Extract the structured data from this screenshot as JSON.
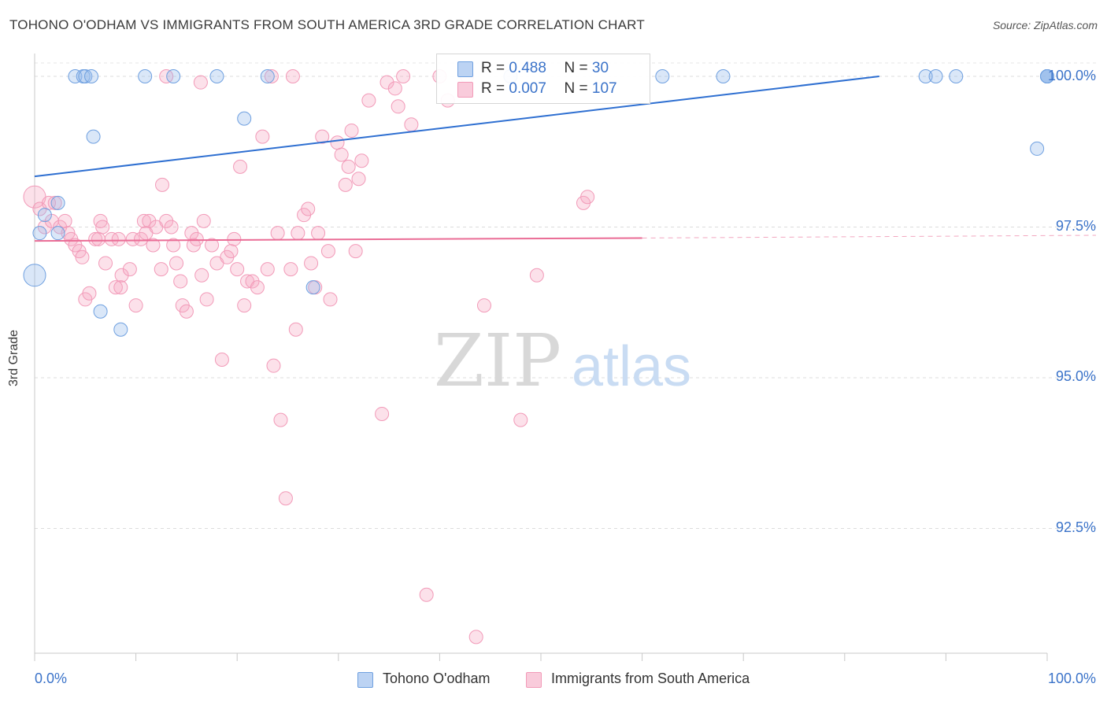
{
  "title": "TOHONO O'ODHAM VS IMMIGRANTS FROM SOUTH AMERICA 3RD GRADE CORRELATION CHART",
  "source": "Source: ZipAtlas.com",
  "watermark": {
    "zip": "ZIP",
    "atlas": "atlas"
  },
  "legend": {
    "r_label": "R =",
    "n_label": "N =",
    "series": [
      {
        "r": "0.488",
        "n": "30"
      },
      {
        "r": "0.007",
        "n": "107"
      }
    ]
  },
  "chart_data": {
    "type": "scatter",
    "title": "TOHONO O'ODHAM VS IMMIGRANTS FROM SOUTH AMERICA 3RD GRADE CORRELATION CHART",
    "xlabel": "",
    "ylabel": "3rd Grade",
    "xlim": [
      0,
      100
    ],
    "ylim": [
      90.0,
      100.4
    ],
    "x_ticks": [
      "0.0%",
      "100.0%"
    ],
    "y_ticks": [
      "100.0%",
      "97.5%",
      "95.0%",
      "92.5%"
    ],
    "y_tick_values": [
      100.0,
      97.5,
      95.0,
      92.5
    ],
    "grid": true,
    "legend_position": "bottom",
    "series": [
      {
        "name": "Tohono O'odham",
        "color": "#6fa0e0",
        "trend": {
          "x": [
            0,
            100
          ],
          "y": [
            98.34,
            100.33
          ],
          "solid_until": 100
        },
        "points": [
          [
            0,
            96.7
          ],
          [
            0.5,
            97.4
          ],
          [
            1,
            97.7
          ],
          [
            2.3,
            97.9
          ],
          [
            2.3,
            97.4
          ],
          [
            4,
            100
          ],
          [
            4.8,
            100
          ],
          [
            5,
            100
          ],
          [
            5.6,
            100
          ],
          [
            5.8,
            99.0
          ],
          [
            6.5,
            96.1
          ],
          [
            8.5,
            95.8
          ],
          [
            10.9,
            100
          ],
          [
            13.7,
            100
          ],
          [
            18,
            100
          ],
          [
            20.7,
            99.3
          ],
          [
            23,
            100
          ],
          [
            27.5,
            96.5
          ],
          [
            47,
            100
          ],
          [
            62,
            100
          ],
          [
            68,
            100
          ],
          [
            88,
            100
          ],
          [
            89,
            100
          ],
          [
            91,
            100
          ],
          [
            99,
            98.8
          ],
          [
            100,
            100
          ],
          [
            100,
            100
          ],
          [
            100,
            100
          ],
          [
            100,
            100
          ],
          [
            100,
            100
          ]
        ]
      },
      {
        "name": "Immigrants from South America",
        "color": "#f29ab8",
        "trend": {
          "x": [
            0,
            100
          ],
          "y": [
            97.27,
            97.35
          ],
          "solid_until": 60
        },
        "points": [
          [
            0,
            98.0
          ],
          [
            0.5,
            97.8
          ],
          [
            1,
            97.5
          ],
          [
            1.4,
            97.9
          ],
          [
            1.7,
            97.6
          ],
          [
            2,
            97.9
          ],
          [
            2.5,
            97.5
          ],
          [
            3,
            97.6
          ],
          [
            3.3,
            97.4
          ],
          [
            3.6,
            97.3
          ],
          [
            4,
            97.2
          ],
          [
            4.4,
            97.1
          ],
          [
            4.7,
            97.0
          ],
          [
            5,
            96.3
          ],
          [
            5.4,
            96.4
          ],
          [
            6,
            97.3
          ],
          [
            6.3,
            97.3
          ],
          [
            6.5,
            97.6
          ],
          [
            6.7,
            97.5
          ],
          [
            7,
            96.9
          ],
          [
            7.6,
            97.3
          ],
          [
            8,
            96.5
          ],
          [
            8.3,
            97.3
          ],
          [
            8.5,
            96.5
          ],
          [
            8.6,
            96.7
          ],
          [
            9.4,
            96.8
          ],
          [
            9.7,
            97.3
          ],
          [
            10,
            96.2
          ],
          [
            10.5,
            97.3
          ],
          [
            10.8,
            97.6
          ],
          [
            11,
            97.4
          ],
          [
            11.3,
            97.6
          ],
          [
            11.7,
            97.2
          ],
          [
            12,
            97.5
          ],
          [
            12.5,
            96.8
          ],
          [
            12.6,
            98.2
          ],
          [
            13,
            97.6
          ],
          [
            13.5,
            97.5
          ],
          [
            13.7,
            97.2
          ],
          [
            14,
            96.9
          ],
          [
            14.4,
            96.6
          ],
          [
            14.6,
            96.2
          ],
          [
            15,
            96.1
          ],
          [
            15.5,
            97.4
          ],
          [
            15.7,
            97.2
          ],
          [
            16,
            97.3
          ],
          [
            16.5,
            96.7
          ],
          [
            16.7,
            97.6
          ],
          [
            17,
            96.3
          ],
          [
            17.5,
            97.2
          ],
          [
            18,
            96.9
          ],
          [
            18.5,
            95.3
          ],
          [
            19,
            97.0
          ],
          [
            19.4,
            97.1
          ],
          [
            19.7,
            97.3
          ],
          [
            20,
            96.8
          ],
          [
            20.3,
            98.5
          ],
          [
            20.7,
            96.2
          ],
          [
            21,
            96.6
          ],
          [
            21.5,
            96.6
          ],
          [
            22,
            96.5
          ],
          [
            22.5,
            99.0
          ],
          [
            23,
            96.8
          ],
          [
            23.6,
            95.2
          ],
          [
            24,
            97.4
          ],
          [
            24.3,
            94.3
          ],
          [
            24.8,
            93.0
          ],
          [
            25.3,
            96.8
          ],
          [
            25.8,
            95.8
          ],
          [
            26,
            97.4
          ],
          [
            26.6,
            97.7
          ],
          [
            27,
            97.8
          ],
          [
            27.3,
            96.9
          ],
          [
            27.7,
            96.5
          ],
          [
            28,
            97.4
          ],
          [
            28.4,
            99.0
          ],
          [
            29,
            97.1
          ],
          [
            29.2,
            96.3
          ],
          [
            29.9,
            98.9
          ],
          [
            30.3,
            98.7
          ],
          [
            30.7,
            98.2
          ],
          [
            31,
            98.5
          ],
          [
            31.3,
            99.1
          ],
          [
            31.7,
            97.1
          ],
          [
            32,
            98.3
          ],
          [
            32.3,
            98.6
          ],
          [
            33,
            99.6
          ],
          [
            34.3,
            94.4
          ],
          [
            34.8,
            99.9
          ],
          [
            35.6,
            99.8
          ],
          [
            35.9,
            99.5
          ],
          [
            36.4,
            100
          ],
          [
            37.2,
            99.2
          ],
          [
            38.7,
            91.4
          ],
          [
            40,
            100
          ],
          [
            40.8,
            99.6
          ],
          [
            43.6,
            90.7
          ],
          [
            44.4,
            96.2
          ],
          [
            49.6,
            96.7
          ],
          [
            48,
            94.3
          ],
          [
            54.2,
            97.9
          ],
          [
            54.6,
            98.0
          ],
          [
            42.7,
            100
          ],
          [
            23.4,
            100
          ],
          [
            16.4,
            99.9
          ],
          [
            25.5,
            100
          ],
          [
            13.0,
            100
          ]
        ]
      }
    ]
  }
}
